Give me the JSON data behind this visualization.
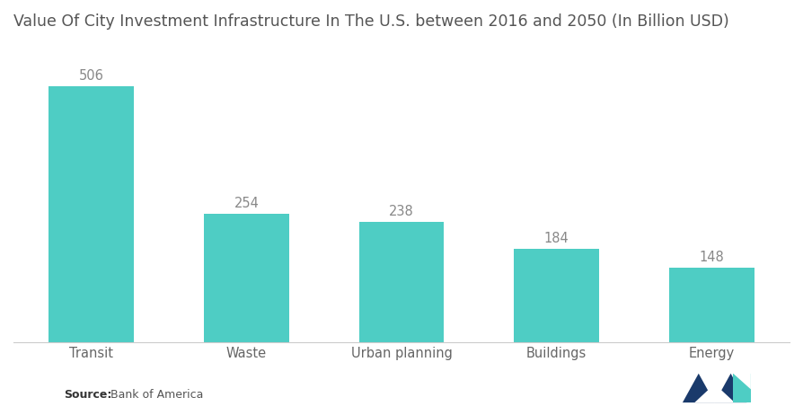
{
  "title": "Value Of City Investment Infrastructure In The U.S. between 2016 and 2050 (In Billion USD)",
  "categories": [
    "Transit",
    "Waste",
    "Urban planning",
    "Buildings",
    "Energy"
  ],
  "values": [
    506,
    254,
    238,
    184,
    148
  ],
  "bar_color": "#4ECDC4",
  "label_color": "#888888",
  "title_fontsize": 12.5,
  "tick_fontsize": 10.5,
  "value_label_fontsize": 10.5,
  "background_color": "#ffffff",
  "ylim": [
    0,
    590
  ],
  "bar_width": 0.55
}
